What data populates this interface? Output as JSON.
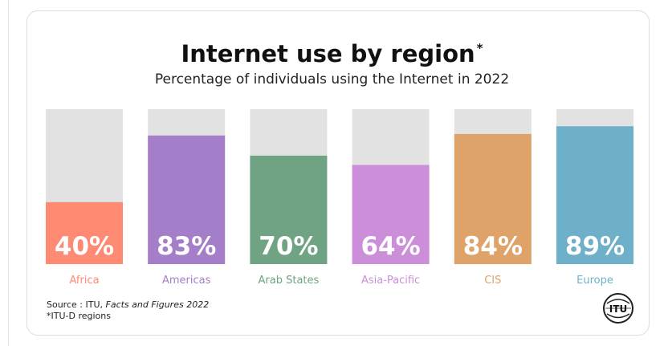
{
  "chart_data": {
    "type": "bar",
    "title": "Internet use by region",
    "title_mark": "*",
    "subtitle": "Percentage of individuals using the Internet in 2022",
    "categories": [
      "Africa",
      "Americas",
      "Arab States",
      "Asia-Pacific",
      "CIS",
      "Europe"
    ],
    "values": [
      40,
      83,
      70,
      64,
      84,
      89
    ],
    "value_labels": [
      "40%",
      "83%",
      "70%",
      "64%",
      "84%",
      "89%"
    ],
    "colors": [
      "#ff8a73",
      "#a57ec9",
      "#6fa384",
      "#cc8ed9",
      "#dfa36a",
      "#6eb0c9"
    ],
    "background_color": "#e2e2e2",
    "ylim": [
      0,
      100
    ],
    "xlabel": "",
    "ylabel": "",
    "grid": false,
    "legend": "none"
  },
  "source": {
    "prefix": "Source : ITU, ",
    "italic": "Facts and Figures 2022"
  },
  "note": "*ITU-D regions",
  "logo": {
    "icon": "itu-logo-icon",
    "text": "ITU"
  }
}
